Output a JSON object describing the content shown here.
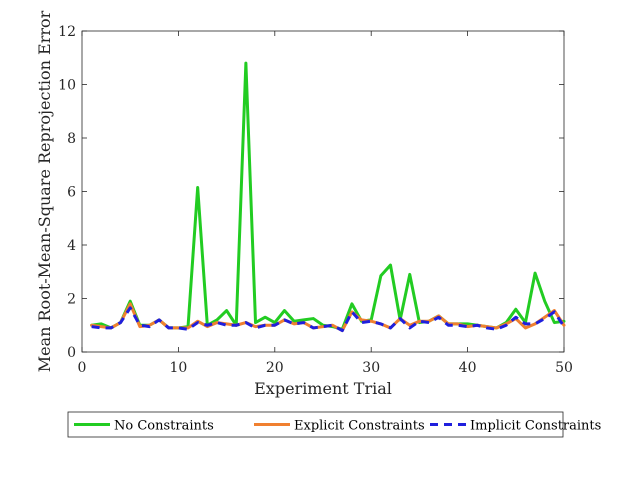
{
  "chart_data": {
    "type": "line",
    "title": "",
    "xlabel": "Experiment Trial",
    "ylabel": "Mean Root-Mean-Square Reprojection Error",
    "xlim": [
      0,
      50
    ],
    "ylim": [
      0,
      12
    ],
    "xticks": [
      0,
      10,
      20,
      30,
      40,
      50
    ],
    "yticks": [
      0,
      2,
      4,
      6,
      8,
      10,
      12
    ],
    "grid": false,
    "legend_position": "bottom-outside",
    "x": [
      1,
      2,
      3,
      4,
      5,
      6,
      7,
      8,
      9,
      10,
      11,
      12,
      13,
      14,
      15,
      16,
      17,
      18,
      19,
      20,
      21,
      22,
      23,
      24,
      25,
      26,
      27,
      28,
      29,
      30,
      31,
      32,
      33,
      34,
      35,
      36,
      37,
      38,
      39,
      40,
      41,
      42,
      43,
      44,
      45,
      46,
      47,
      48,
      49,
      50
    ],
    "series": [
      {
        "name": "No Constraints",
        "color": "#22cc22",
        "dash": "solid",
        "values": [
          1.0,
          1.05,
          0.9,
          1.1,
          1.9,
          1.0,
          1.0,
          1.2,
          0.9,
          0.9,
          0.95,
          6.15,
          1.0,
          1.2,
          1.55,
          1.0,
          10.8,
          1.1,
          1.3,
          1.1,
          1.55,
          1.15,
          1.2,
          1.25,
          1.0,
          0.95,
          0.85,
          1.8,
          1.15,
          1.2,
          2.85,
          3.25,
          1.2,
          2.9,
          1.1,
          1.15,
          1.35,
          1.05,
          1.05,
          1.05,
          1.0,
          0.95,
          0.9,
          1.1,
          1.6,
          1.1,
          2.95,
          1.9,
          1.1,
          1.15
        ]
      },
      {
        "name": "Explicit Constraints",
        "color": "#f08030",
        "dash": "solid",
        "values": [
          1.0,
          0.95,
          0.9,
          1.1,
          1.8,
          0.95,
          1.0,
          1.2,
          0.9,
          0.9,
          0.9,
          1.15,
          0.95,
          1.1,
          1.05,
          1.0,
          1.1,
          0.95,
          1.0,
          1.0,
          1.2,
          1.05,
          1.1,
          0.9,
          0.95,
          1.0,
          0.8,
          1.5,
          1.2,
          1.15,
          1.05,
          0.9,
          1.25,
          1.0,
          1.15,
          1.15,
          1.35,
          1.05,
          1.05,
          0.95,
          1.0,
          0.95,
          0.9,
          1.05,
          1.25,
          0.9,
          1.05,
          1.3,
          1.55,
          1.0
        ]
      },
      {
        "name": "Implicit Constraints",
        "color": "#1f1fdd",
        "dash": "dashed",
        "values": [
          0.95,
          0.9,
          0.9,
          1.1,
          1.65,
          1.0,
          0.95,
          1.2,
          0.9,
          0.9,
          0.85,
          1.1,
          1.0,
          1.1,
          1.0,
          1.0,
          1.1,
          0.9,
          1.0,
          1.0,
          1.2,
          1.05,
          1.1,
          0.9,
          0.95,
          1.0,
          0.8,
          1.5,
          1.1,
          1.15,
          1.05,
          0.9,
          1.25,
          0.9,
          1.15,
          1.1,
          1.3,
          1.0,
          1.0,
          0.95,
          1.0,
          0.9,
          0.85,
          1.0,
          1.3,
          1.05,
          1.05,
          1.25,
          1.5,
          0.95
        ]
      }
    ]
  }
}
